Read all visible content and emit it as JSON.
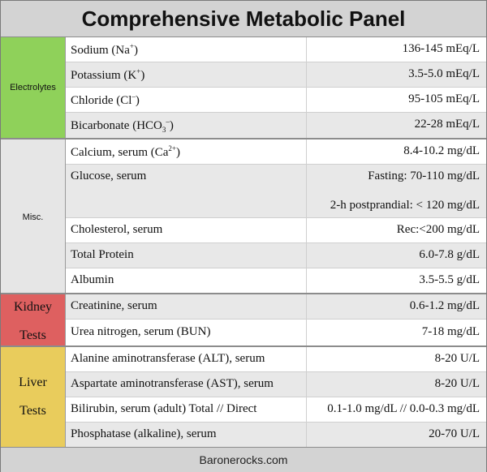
{
  "title": "Comprehensive Metabolic Panel",
  "footer": "Baronerocks.com",
  "colors": {
    "electrolytes": "#8fd15a",
    "misc": "#e6e6e6",
    "kidney": "#de6060",
    "liver": "#e9cc5c"
  },
  "groups": {
    "electrolytes": {
      "label": "Electrolytes",
      "rows": [
        {
          "name": "Sodium (Na",
          "sup": "+",
          "after": ")",
          "value": "136-145 mEq/L"
        },
        {
          "name": "Potassium (K",
          "sup": "+",
          "after": ")",
          "value": "3.5-5.0 mEq/L"
        },
        {
          "name": "Chloride (Cl",
          "sup": "–",
          "after": ")",
          "value": "95-105 mEq/L"
        },
        {
          "name": "Bicarbonate (HCO",
          "sub": "3",
          "sup": "–",
          "after": ")",
          "value": "22-28 mEq/L"
        }
      ]
    },
    "misc": {
      "label": "Misc.",
      "rows": [
        {
          "name": "Calcium, serum (Ca",
          "sup": "2+",
          "after": ")",
          "value": "8.4-10.2 mg/dL"
        },
        {
          "name": "Glucose, serum",
          "value": "Fasting: 70-110 mg/dL",
          "value2": "2-h postprandial: < 120 mg/dL"
        },
        {
          "name": "Cholesterol, serum",
          "value": "Rec:<200 mg/dL"
        },
        {
          "name": "Total Protein",
          "value": "6.0-7.8 g/dL"
        },
        {
          "name": "Albumin",
          "value": "3.5-5.5 g/dL"
        }
      ]
    },
    "kidney": {
      "label_line1": "Kidney",
      "label_line2": "Tests",
      "rows": [
        {
          "name": "Creatinine, serum",
          "value": "0.6-1.2 mg/dL"
        },
        {
          "name": "Urea nitrogen, serum (BUN)",
          "value": "7-18 mg/dL"
        }
      ]
    },
    "liver": {
      "label_line1": "Liver",
      "label_line2": "Tests",
      "rows": [
        {
          "name": "Alanine aminotransferase (ALT), serum",
          "value": "8-20 U/L"
        },
        {
          "name": "Aspartate aminotransferase (AST), serum",
          "value": "8-20 U/L"
        },
        {
          "name": "Bilirubin, serum (adult) Total // Direct",
          "value": "0.1-1.0 mg/dL // 0.0-0.3 mg/dL"
        },
        {
          "name": "Phosphatase (alkaline), serum",
          "value": "20-70 U/L"
        }
      ]
    }
  }
}
